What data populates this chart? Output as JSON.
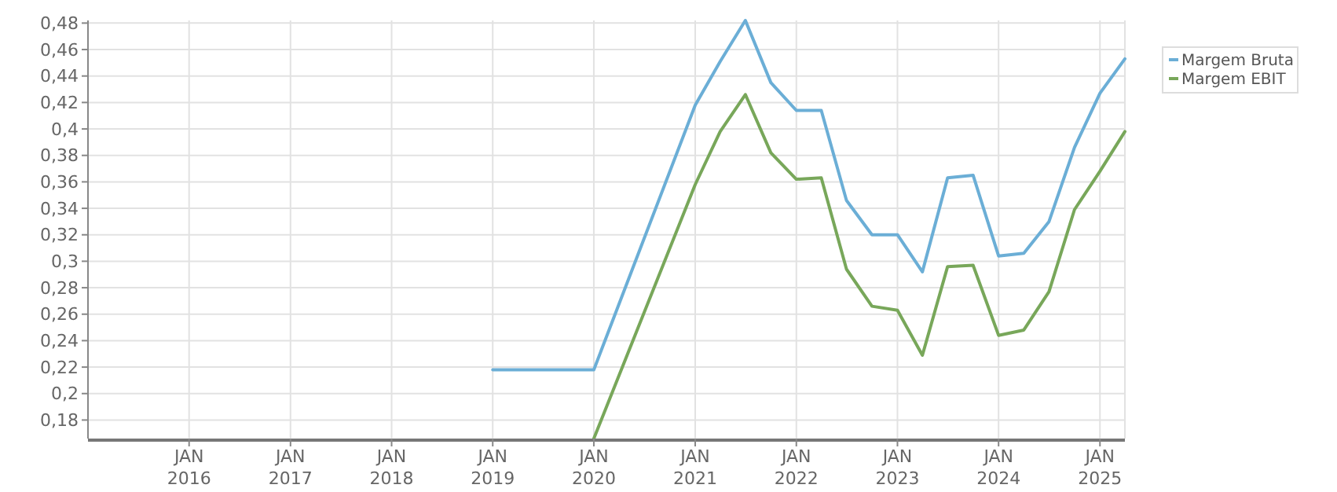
{
  "chart_data": {
    "type": "line",
    "x": [
      "2019-01-01",
      "2020-01-01",
      "2021-01-01",
      "2021-04-01",
      "2021-07-01",
      "2021-10-01",
      "2022-01-01",
      "2022-04-01",
      "2022-07-01",
      "2022-10-01",
      "2023-01-01",
      "2023-04-01",
      "2023-07-01",
      "2023-10-01",
      "2024-01-01",
      "2024-04-01",
      "2024-07-01",
      "2024-10-01",
      "2025-01-01",
      "2025-04-01"
    ],
    "series": [
      {
        "name": "Margem Bruta",
        "color": "#6baed6",
        "values": [
          0.218,
          0.218,
          0.418,
          0.451,
          0.482,
          0.435,
          0.414,
          0.414,
          0.346,
          0.32,
          0.32,
          0.292,
          0.363,
          0.365,
          0.304,
          0.306,
          0.33,
          0.386,
          0.427,
          0.453
        ]
      },
      {
        "name": "Margem EBIT",
        "color": "#78a75a",
        "values": [
          null,
          0.166,
          0.358,
          0.398,
          0.426,
          0.382,
          0.362,
          0.363,
          0.294,
          0.266,
          0.263,
          0.229,
          0.296,
          0.297,
          0.244,
          0.248,
          0.277,
          0.339,
          0.368,
          0.398
        ]
      }
    ],
    "xlim": [
      "2015-01-01",
      "2025-04-01"
    ],
    "xticks": [
      {
        "value": "2016-01-01",
        "label": "JAN 2016"
      },
      {
        "value": "2017-01-01",
        "label": "JAN 2017"
      },
      {
        "value": "2018-01-01",
        "label": "JAN 2018"
      },
      {
        "value": "2019-01-01",
        "label": "JAN 2019"
      },
      {
        "value": "2020-01-01",
        "label": "JAN 2020"
      },
      {
        "value": "2021-01-01",
        "label": "JAN 2021"
      },
      {
        "value": "2022-01-01",
        "label": "JAN 2022"
      },
      {
        "value": "2023-01-01",
        "label": "JAN 2023"
      },
      {
        "value": "2024-01-01",
        "label": "JAN 2024"
      },
      {
        "value": "2025-01-01",
        "label": "JAN 2025"
      }
    ],
    "ylim": [
      0.166,
      0.482
    ],
    "yticks": [
      {
        "value": 0.18,
        "label": "0,18"
      },
      {
        "value": 0.2,
        "label": "0,2"
      },
      {
        "value": 0.22,
        "label": "0,22"
      },
      {
        "value": 0.24,
        "label": "0,24"
      },
      {
        "value": 0.26,
        "label": "0,26"
      },
      {
        "value": 0.28,
        "label": "0,28"
      },
      {
        "value": 0.3,
        "label": "0,3"
      },
      {
        "value": 0.32,
        "label": "0,32"
      },
      {
        "value": 0.34,
        "label": "0,34"
      },
      {
        "value": 0.36,
        "label": "0,36"
      },
      {
        "value": 0.38,
        "label": "0,38"
      },
      {
        "value": 0.4,
        "label": "0,4"
      },
      {
        "value": 0.42,
        "label": "0,42"
      },
      {
        "value": 0.44,
        "label": "0,44"
      },
      {
        "value": 0.46,
        "label": "0,46"
      },
      {
        "value": 0.48,
        "label": "0,48"
      }
    ],
    "grid": true,
    "legend": "top right",
    "marker": "none",
    "line_style": "solid"
  }
}
